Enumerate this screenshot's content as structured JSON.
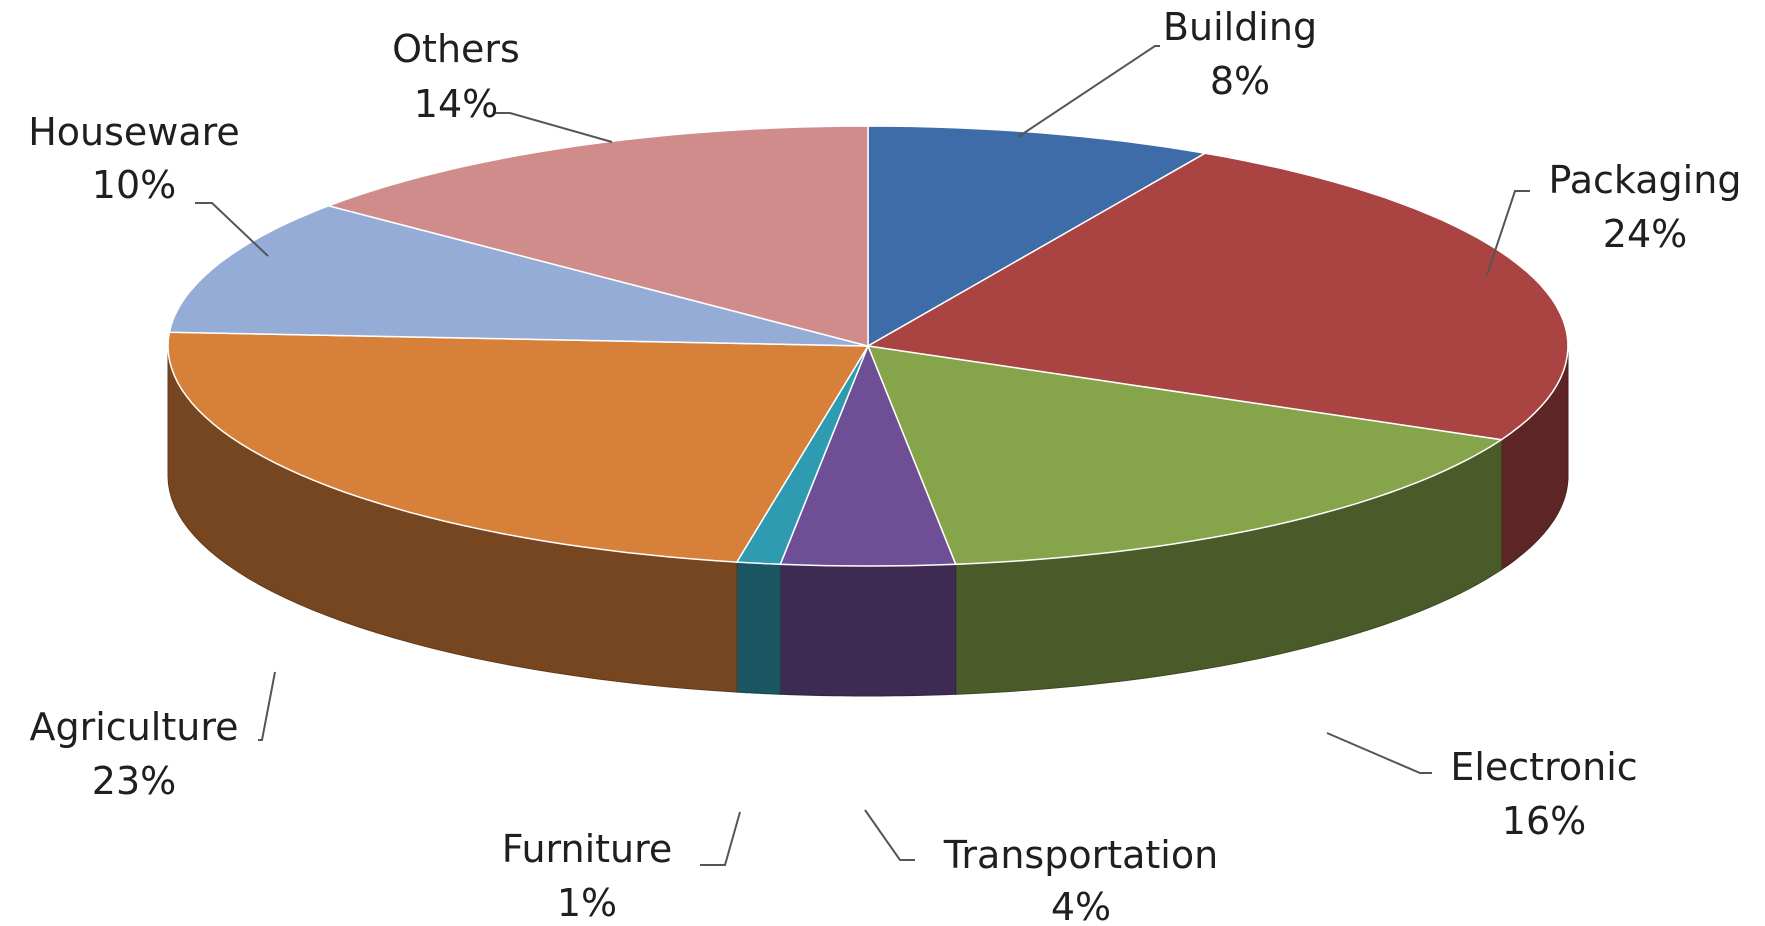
{
  "chart_data": {
    "type": "pie",
    "style": "3d",
    "title": "",
    "slices": [
      {
        "label": "Building",
        "value": 8,
        "percent_label": "8%",
        "color": "#3d6ca8"
      },
      {
        "label": "Packaging",
        "value": 24,
        "percent_label": "24%",
        "color": "#a94442"
      },
      {
        "label": "Electronic",
        "value": 16,
        "percent_label": "16%",
        "color": "#86a44a"
      },
      {
        "label": "Transportation",
        "value": 4,
        "percent_label": "4%",
        "color": "#6e4f95"
      },
      {
        "label": "Furniture",
        "value": 1,
        "percent_label": "1%",
        "color": "#2f9bb0"
      },
      {
        "label": "Agriculture",
        "value": 23,
        "percent_label": "23%",
        "color": "#d7803a"
      },
      {
        "label": "Houseware",
        "value": 10,
        "percent_label": "10%",
        "color": "#95add6"
      },
      {
        "label": "Others",
        "value": 14,
        "percent_label": "14%",
        "color": "#d08b8b"
      }
    ]
  }
}
